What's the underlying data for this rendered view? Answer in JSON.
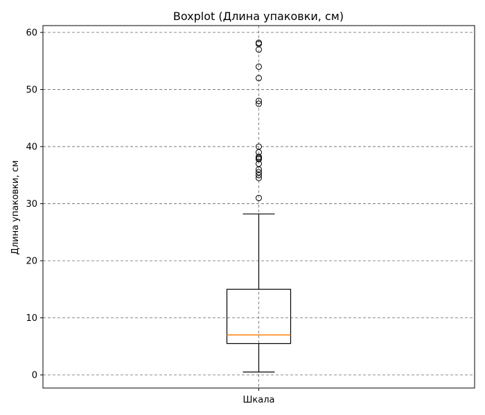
{
  "chart_data": {
    "type": "boxplot",
    "title": "Boxplot (Длина упаковки, см)",
    "xlabel": "",
    "ylabel": "Длина упаковки, см",
    "categories": [
      "Шкала"
    ],
    "ylim": [
      -2.3,
      61.2
    ],
    "yticks": [
      0,
      10,
      20,
      30,
      40,
      50,
      60
    ],
    "grid": true,
    "box": {
      "whisker_low": 0.5,
      "q1": 5.5,
      "median": 7.0,
      "q3": 15.0,
      "whisker_high": 28.2
    },
    "outliers": [
      31.0,
      34.5,
      35.0,
      35.5,
      36.0,
      37.0,
      37.8,
      38.0,
      38.2,
      39.0,
      40.0,
      47.5,
      48.0,
      52.0,
      54.0,
      57.0,
      58.0,
      58.2
    ],
    "colors": {
      "box": "#000000",
      "median": "#ff7f0e",
      "grid": "#666666"
    }
  }
}
